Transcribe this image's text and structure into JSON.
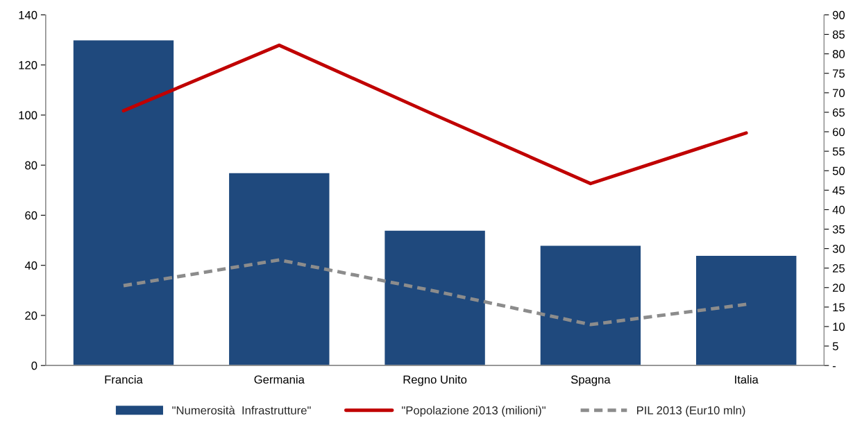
{
  "chart_data": {
    "type": "bar",
    "categories": [
      "Francia",
      "Germania",
      "Regno Unito",
      "Spagna",
      "Italia"
    ],
    "series": [
      {
        "name": "\"Numerosità  Infrastrutture\"",
        "color": "#1f497d",
        "values": [
          130,
          77,
          54,
          48,
          44
        ]
      },
      {
        "name": "\"Popolazione 2013 (milioni)\"",
        "type": "line",
        "axis": "y2",
        "color": "#c00000",
        "line_style": "solid",
        "values": [
          65.4,
          82.2,
          64.3,
          46.7,
          59.7
        ]
      },
      {
        "name": "PIL 2013 (Eur10 mln)",
        "type": "line",
        "axis": "y2",
        "color": "#8c8c8c",
        "line_style": "dashed",
        "values": [
          20.5,
          27.1,
          19.1,
          10.5,
          15.7
        ]
      }
    ],
    "ylim": [
      0,
      140
    ],
    "yticks": [
      0,
      20,
      40,
      60,
      80,
      100,
      120,
      140
    ],
    "y2lim": [
      0,
      90
    ],
    "y2ticks": [
      {
        "value": 0,
        "label": "-"
      },
      5,
      10,
      15,
      20,
      25,
      30,
      35,
      40,
      45,
      50,
      55,
      60,
      65,
      70,
      75,
      80,
      85,
      90
    ],
    "grid": false,
    "legend": "bottom"
  }
}
